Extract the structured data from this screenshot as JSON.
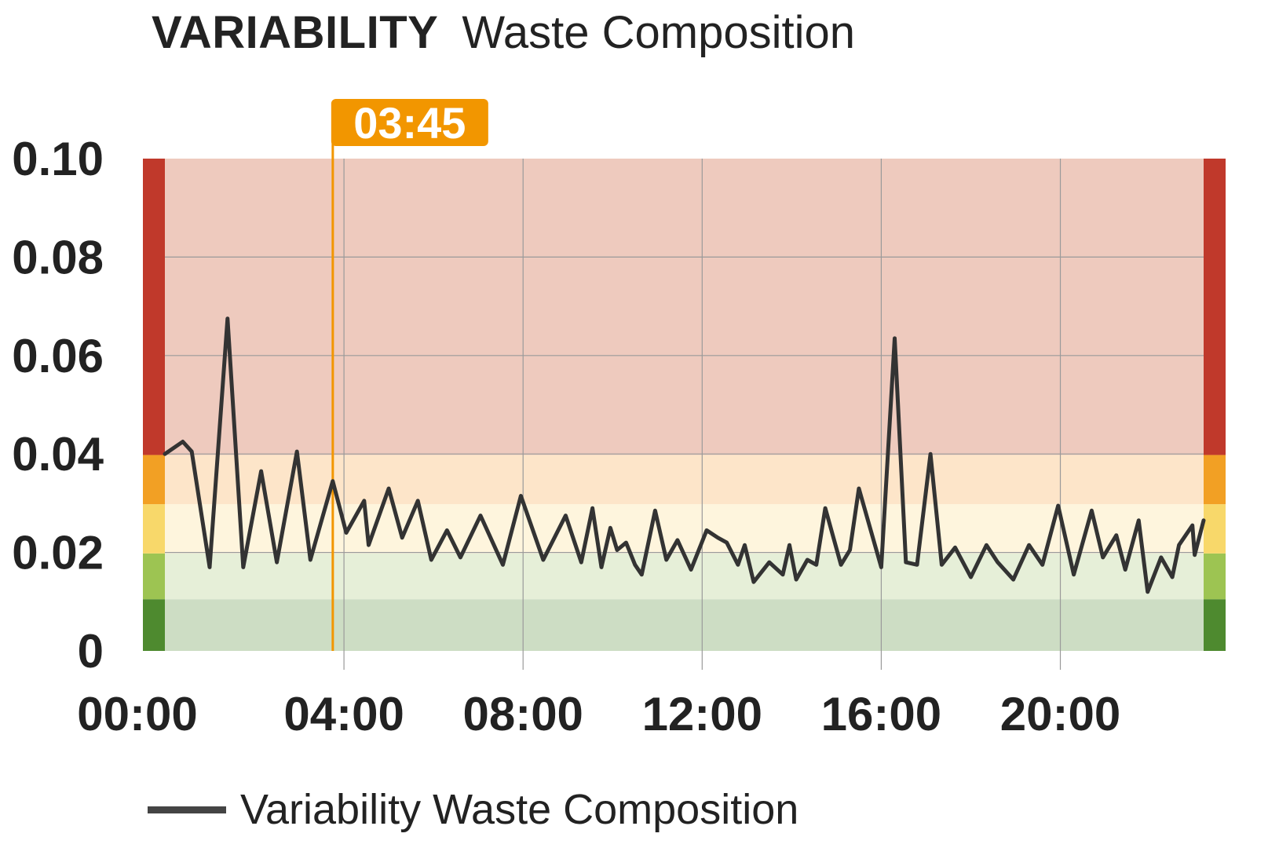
{
  "header": {
    "title": "VARIABILITY",
    "subtitle": "Waste Composition"
  },
  "marker": {
    "label": "03:45",
    "hour": 3.75,
    "color": "#F29600"
  },
  "colors": {
    "line": "#333333",
    "grid": "#9a9a9a"
  },
  "chart_data": {
    "type": "line",
    "title": "Waste Composition",
    "xlabel": "",
    "ylabel": "",
    "xlim": [
      0,
      23.2
    ],
    "ylim": [
      0,
      0.1
    ],
    "x_ticks": [
      {
        "hour": 0,
        "label": "00:00"
      },
      {
        "hour": 4,
        "label": "04:00"
      },
      {
        "hour": 8,
        "label": "08:00"
      },
      {
        "hour": 12,
        "label": "12:00"
      },
      {
        "hour": 16,
        "label": "16:00"
      },
      {
        "hour": 20,
        "label": "20:00"
      }
    ],
    "y_ticks": [
      {
        "value": 0,
        "label": "0"
      },
      {
        "value": 0.02,
        "label": "0.02"
      },
      {
        "value": 0.04,
        "label": "0.04"
      },
      {
        "value": 0.06,
        "label": "0.06"
      },
      {
        "value": 0.08,
        "label": "0.08"
      },
      {
        "value": 0.1,
        "label": "0.10"
      }
    ],
    "grid": true,
    "legend": "bottom-left",
    "bands": [
      {
        "from": 0,
        "to": 0.0105,
        "edge_color": "#4E8A2F",
        "fill": "#CDDDC4"
      },
      {
        "from": 0.0105,
        "to": 0.0198,
        "edge_color": "#9DC452",
        "fill": "#E6EFD8"
      },
      {
        "from": 0.0198,
        "to": 0.0298,
        "edge_color": "#F8D86A",
        "fill": "#FEF5DD"
      },
      {
        "from": 0.0298,
        "to": 0.0398,
        "edge_color": "#F2A024",
        "fill": "#FDE5C9"
      },
      {
        "from": 0.0398,
        "to": 0.1,
        "edge_color": "#C0392B",
        "fill": "#EECABE"
      }
    ],
    "series": [
      {
        "name": "Variability Waste Composition",
        "color": "#333333",
        "x": [
          0,
          0.4,
          0.6,
          1.0,
          1.4,
          1.75,
          2.15,
          2.5,
          2.95,
          3.25,
          3.75,
          4.05,
          4.45,
          4.55,
          5.0,
          5.3,
          5.65,
          5.95,
          6.3,
          6.6,
          7.05,
          7.55,
          7.95,
          8.45,
          8.95,
          9.3,
          9.55,
          9.75,
          9.85,
          9.95,
          10.1,
          10.3,
          10.5,
          10.65,
          10.95,
          11.2,
          11.45,
          11.75,
          12.1,
          12.35,
          12.55,
          12.8,
          12.95,
          13.15,
          13.5,
          13.8,
          13.95,
          14.1,
          14.35,
          14.55,
          14.75,
          15.1,
          15.3,
          15.5,
          16.0,
          16.3,
          16.55,
          16.8,
          17.1,
          17.35,
          17.65,
          18.0,
          18.35,
          18.6,
          18.95,
          19.3,
          19.6,
          19.95,
          20.3,
          20.7,
          20.95,
          21.25,
          21.45,
          21.75,
          21.95,
          22.25,
          22.5,
          22.65,
          22.95,
          23.0,
          23.2
        ],
        "values": [
          0.04,
          0.0425,
          0.0405,
          0.017,
          0.0675,
          0.017,
          0.0365,
          0.018,
          0.0405,
          0.0185,
          0.0345,
          0.024,
          0.0305,
          0.0215,
          0.033,
          0.023,
          0.0305,
          0.0185,
          0.0245,
          0.019,
          0.0275,
          0.0175,
          0.0315,
          0.0185,
          0.0275,
          0.018,
          0.029,
          0.017,
          0.021,
          0.025,
          0.0205,
          0.022,
          0.0175,
          0.0155,
          0.0285,
          0.0185,
          0.0225,
          0.0165,
          0.0245,
          0.023,
          0.022,
          0.0175,
          0.0215,
          0.014,
          0.018,
          0.0155,
          0.0215,
          0.0145,
          0.0185,
          0.0175,
          0.029,
          0.0175,
          0.0205,
          0.033,
          0.017,
          0.0635,
          0.018,
          0.0175,
          0.04,
          0.0175,
          0.021,
          0.015,
          0.0215,
          0.018,
          0.0145,
          0.0215,
          0.0175,
          0.0295,
          0.0155,
          0.0285,
          0.019,
          0.0235,
          0.0165,
          0.0265,
          0.012,
          0.019,
          0.015,
          0.0215,
          0.0255,
          0.0195,
          0.0265
        ]
      }
    ]
  }
}
